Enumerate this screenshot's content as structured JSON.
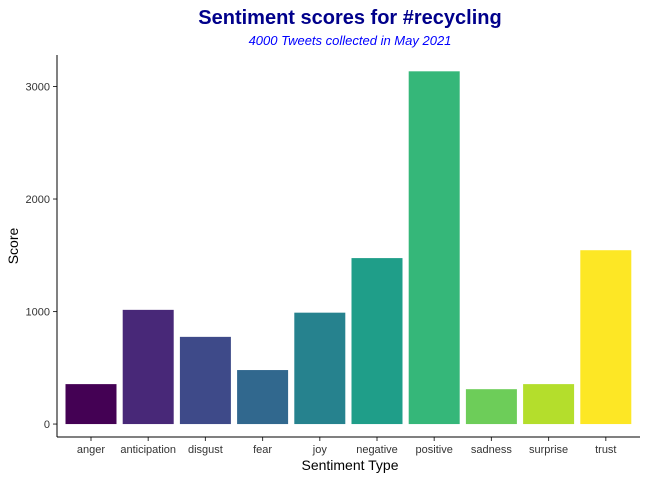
{
  "chart_data": {
    "type": "bar",
    "title": "Sentiment scores for #recycling",
    "subtitle": "4000 Tweets collected in May 2021",
    "xlabel": "Sentiment Type",
    "ylabel": "Score",
    "categories": [
      "anger",
      "anticipation",
      "disgust",
      "fear",
      "joy",
      "negative",
      "positive",
      "sadness",
      "surprise",
      "trust"
    ],
    "values": [
      355,
      1015,
      775,
      480,
      990,
      1475,
      3135,
      310,
      355,
      1545
    ],
    "ylim": [
      -115,
      3280
    ],
    "yticks": [
      0,
      1000,
      2000,
      3000
    ],
    "ytick_labels": [
      "0",
      "1000",
      "2000",
      "3000"
    ],
    "grid": false,
    "legend": "none",
    "colors": [
      "#440154",
      "#482878",
      "#3E4A89",
      "#31688E",
      "#26828E",
      "#1F9E89",
      "#35B779",
      "#6DCD59",
      "#B4DE2C",
      "#FDE725"
    ],
    "title_color": "#00008B",
    "subtitle_color": "#0000FF"
  }
}
